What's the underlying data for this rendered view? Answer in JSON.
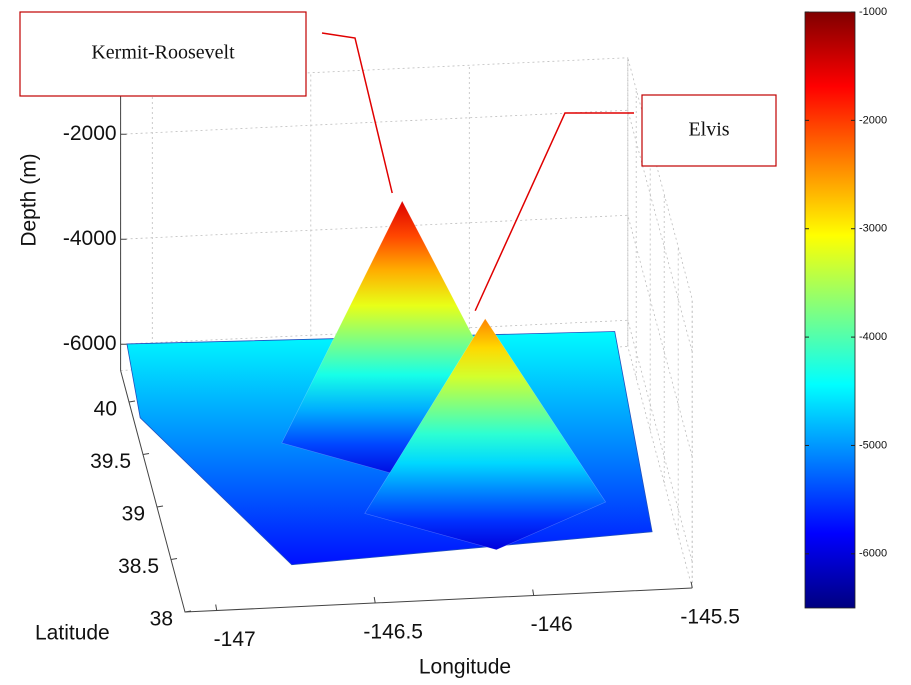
{
  "chart_data": {
    "type": "surface3d",
    "colormap": "jet",
    "grid": true,
    "xlabel": "Longitude",
    "ylabel": "Latitude",
    "zlabel": "Depth (m)",
    "xlim": [
      -147.1,
      -145.5
    ],
    "xticks": [
      -147,
      -146.5,
      -146,
      -145.5
    ],
    "ylim": [
      38,
      40.3
    ],
    "yticks": [
      38,
      38.5,
      39,
      39.5,
      40
    ],
    "zlim": [
      -6500,
      -1000
    ],
    "zticks": [
      -6000,
      -4000,
      -2000
    ],
    "clim": [
      -6500,
      -1000
    ],
    "cticks": [
      -6000,
      -5000,
      -4000,
      -3000,
      -2000,
      -1000
    ],
    "floor_depth": -6000,
    "peaks": [
      {
        "name": "Kermit-Roosevelt",
        "lon": -146.3,
        "lat": 39.3,
        "depth": -1500
      },
      {
        "name": "Elvis",
        "lon": -146.1,
        "lat": 38.6,
        "depth": -2400
      }
    ]
  }
}
